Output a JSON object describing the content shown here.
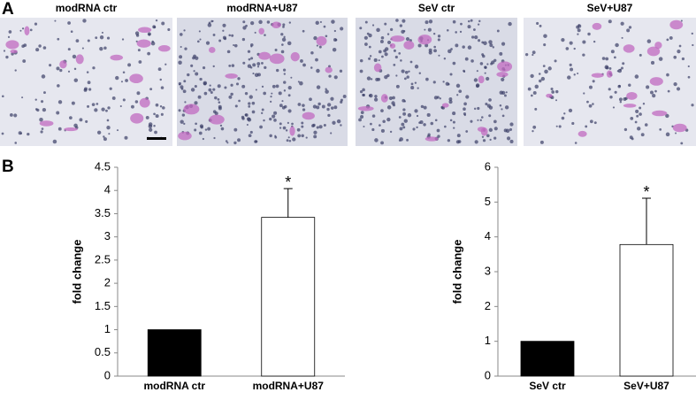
{
  "panel_labels": [
    "A",
    "B"
  ],
  "images": [
    {
      "label": "modRNA ctr"
    },
    {
      "label": "modRNA+U87"
    },
    {
      "label": "SeV ctr"
    },
    {
      "label": "SeV+U87"
    }
  ],
  "chart_data": [
    {
      "type": "bar",
      "ylabel": "fold change",
      "categories": [
        "modRNA ctr",
        "modRNA+U87"
      ],
      "values": [
        1,
        3.42
      ],
      "errors": [
        null,
        0.62
      ],
      "colors": [
        "#000000",
        "#ffffff"
      ],
      "ylim": [
        0,
        4.5
      ],
      "yticks": [
        0,
        0.5,
        1,
        1.5,
        2,
        2.5,
        3,
        3.5,
        4,
        4.5
      ],
      "annotations": [
        {
          "text": "*",
          "x": "modRNA+U87"
        }
      ]
    },
    {
      "type": "bar",
      "ylabel": "fold change",
      "categories": [
        "SeV ctr",
        "SeV+U87"
      ],
      "values": [
        1,
        3.78
      ],
      "errors": [
        null,
        1.33
      ],
      "colors": [
        "#000000",
        "#ffffff"
      ],
      "ylim": [
        0,
        6
      ],
      "yticks": [
        0,
        1,
        2,
        3,
        4,
        5,
        6
      ],
      "annotations": [
        {
          "text": "*",
          "x": "SeV+U87"
        }
      ]
    }
  ]
}
